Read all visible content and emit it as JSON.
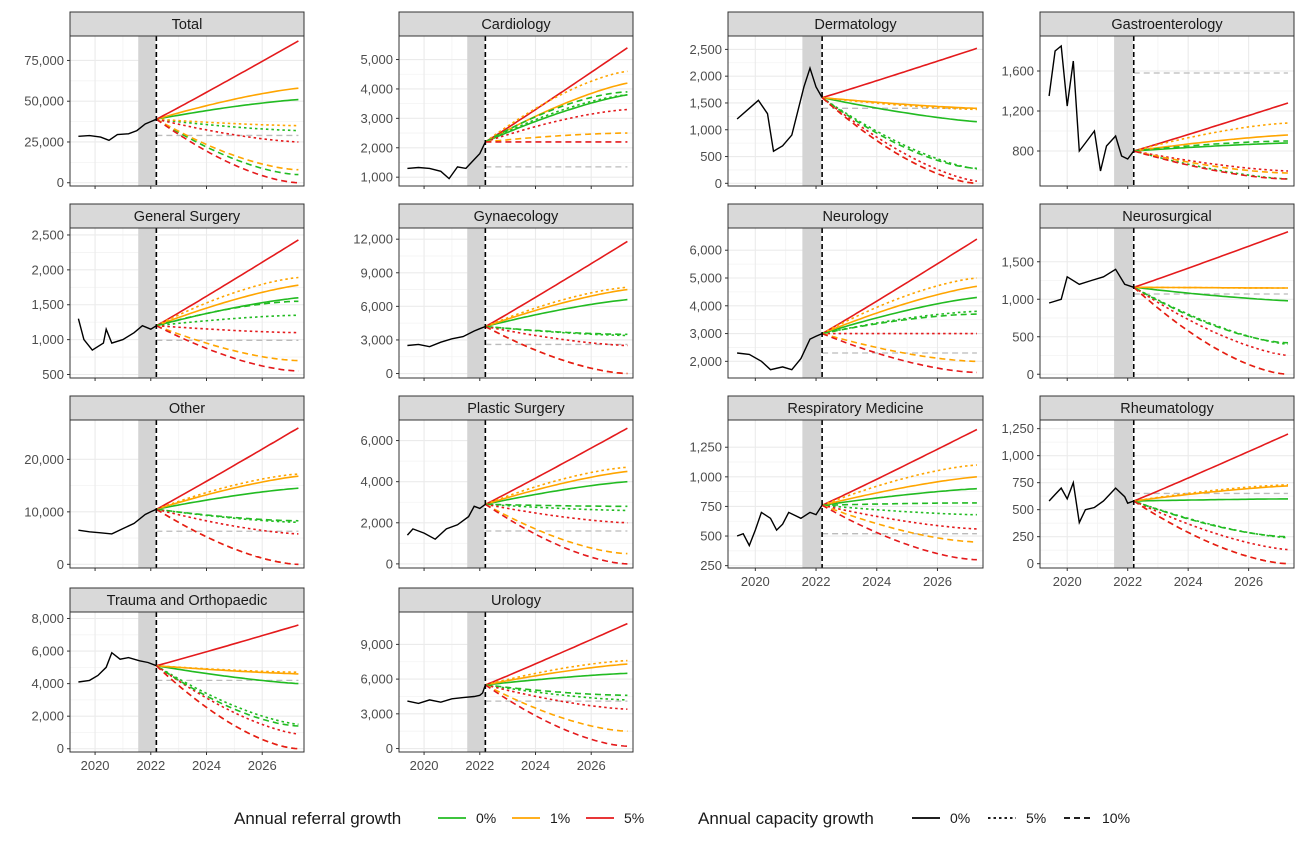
{
  "legend": {
    "referral": {
      "title": "Annual referral growth",
      "items": [
        {
          "label": "0%",
          "color": "#22bb22"
        },
        {
          "label": "1%",
          "color": "#ffa500"
        },
        {
          "label": "5%",
          "color": "#e41a1c"
        }
      ]
    },
    "capacity": {
      "title": "Annual capacity growth",
      "items": [
        {
          "label": "0%",
          "style": "solid"
        },
        {
          "label": "5%",
          "style": "dotted"
        },
        {
          "label": "10%",
          "style": "dashed"
        }
      ]
    }
  },
  "x_axis": {
    "ticks": [
      2020,
      2022,
      2024,
      2026
    ],
    "xlim": [
      2019.1,
      2027.5
    ]
  },
  "shaded_period": [
    2021.55,
    2022.17
  ],
  "forecast_start": 2022.2,
  "colors": {
    "observed": "#000000",
    "baseline": "#bbbbbb",
    "shade": "#d4d4d4",
    "strip": "#d9d9d9",
    "grid": "#ebebeb"
  },
  "chart_data": [
    {
      "type": "line",
      "title": "Total",
      "ylim": [
        -2000,
        90000
      ],
      "yticks": [
        0,
        25000,
        50000,
        75000
      ],
      "observed": [
        [
          2019.4,
          28500
        ],
        [
          2019.8,
          28900
        ],
        [
          2020.2,
          28000
        ],
        [
          2020.5,
          26000
        ],
        [
          2020.8,
          29500
        ],
        [
          2021.2,
          30000
        ],
        [
          2021.5,
          32000
        ],
        [
          2021.8,
          36000
        ],
        [
          2022.0,
          37500
        ],
        [
          2022.2,
          39000
        ]
      ],
      "baseline": 29000,
      "start": 39000,
      "end_2027": [
        51000,
        58000,
        87000,
        32000,
        35000,
        25000,
        5000,
        8000,
        0
      ]
    },
    {
      "type": "line",
      "title": "Cardiology",
      "ylim": [
        700,
        5800
      ],
      "yticks": [
        1000,
        2000,
        3000,
        4000,
        5000
      ],
      "observed": [
        [
          2019.4,
          1300
        ],
        [
          2019.8,
          1330
        ],
        [
          2020.2,
          1300
        ],
        [
          2020.6,
          1200
        ],
        [
          2020.9,
          950
        ],
        [
          2021.2,
          1350
        ],
        [
          2021.5,
          1300
        ],
        [
          2021.8,
          1600
        ],
        [
          2022.0,
          1800
        ],
        [
          2022.2,
          2200
        ]
      ],
      "baseline": 1350,
      "start": 2200,
      "end_2027": [
        3800,
        4200,
        5400,
        3800,
        4600,
        3300,
        3900,
        2500,
        2200
      ]
    },
    {
      "type": "line",
      "title": "Dermatology",
      "ylim": [
        -50,
        2750
      ],
      "yticks": [
        0,
        500,
        1000,
        1500,
        2000,
        2500
      ],
      "observed": [
        [
          2019.4,
          1200
        ],
        [
          2019.8,
          1400
        ],
        [
          2020.1,
          1550
        ],
        [
          2020.4,
          1300
        ],
        [
          2020.6,
          600
        ],
        [
          2020.9,
          700
        ],
        [
          2021.2,
          900
        ],
        [
          2021.6,
          1800
        ],
        [
          2021.8,
          2150
        ],
        [
          2022.0,
          1800
        ],
        [
          2022.2,
          1600
        ]
      ],
      "baseline": 1400,
      "start": 1600,
      "end_2027": [
        1150,
        1400,
        2520,
        270,
        1380,
        40,
        280,
        0,
        0
      ]
    },
    {
      "type": "line",
      "title": "Gastroenterology",
      "ylim": [
        450,
        1950
      ],
      "yticks": [
        800,
        1200,
        1600
      ],
      "observed": [
        [
          2019.4,
          1350
        ],
        [
          2019.6,
          1800
        ],
        [
          2019.8,
          1850
        ],
        [
          2020.0,
          1250
        ],
        [
          2020.2,
          1700
        ],
        [
          2020.4,
          800
        ],
        [
          2020.6,
          880
        ],
        [
          2020.9,
          1000
        ],
        [
          2021.1,
          600
        ],
        [
          2021.3,
          850
        ],
        [
          2021.6,
          950
        ],
        [
          2021.8,
          750
        ],
        [
          2022.0,
          720
        ],
        [
          2022.2,
          800
        ]
      ],
      "baseline": 1580,
      "start": 800,
      "end_2027": [
        880,
        960,
        1280,
        520,
        1080,
        600,
        900,
        580,
        520
      ]
    },
    {
      "type": "line",
      "title": "General Surgery",
      "ylim": [
        450,
        2600
      ],
      "yticks": [
        500,
        1000,
        1500,
        2000,
        2500
      ],
      "observed": [
        [
          2019.4,
          1300
        ],
        [
          2019.6,
          1000
        ],
        [
          2019.9,
          850
        ],
        [
          2020.3,
          950
        ],
        [
          2020.4,
          1150
        ],
        [
          2020.6,
          950
        ],
        [
          2021.0,
          1000
        ],
        [
          2021.4,
          1100
        ],
        [
          2021.7,
          1200
        ],
        [
          2022.0,
          1150
        ],
        [
          2022.2,
          1200
        ]
      ],
      "baseline": 990,
      "start": 1200,
      "end_2027": [
        1600,
        1780,
        2430,
        1350,
        1890,
        1100,
        1550,
        700,
        550
      ]
    },
    {
      "type": "line",
      "title": "Gynaecology",
      "ylim": [
        -400,
        13000
      ],
      "yticks": [
        0,
        3000,
        6000,
        9000,
        12000
      ],
      "observed": [
        [
          2019.4,
          2500
        ],
        [
          2019.8,
          2600
        ],
        [
          2020.2,
          2400
        ],
        [
          2020.6,
          2800
        ],
        [
          2021.0,
          3100
        ],
        [
          2021.4,
          3300
        ],
        [
          2021.8,
          3800
        ],
        [
          2022.0,
          4000
        ],
        [
          2022.2,
          4200
        ]
      ],
      "baseline": 2600,
      "start": 4200,
      "end_2027": [
        6600,
        7500,
        11800,
        3400,
        7700,
        2500,
        3500,
        0,
        0
      ]
    },
    {
      "type": "line",
      "title": "Neurology",
      "ylim": [
        1400,
        6800
      ],
      "yticks": [
        2000,
        3000,
        4000,
        5000,
        6000
      ],
      "observed": [
        [
          2019.4,
          2300
        ],
        [
          2019.8,
          2250
        ],
        [
          2020.2,
          2000
        ],
        [
          2020.5,
          1700
        ],
        [
          2020.9,
          1800
        ],
        [
          2021.2,
          1700
        ],
        [
          2021.5,
          2100
        ],
        [
          2021.8,
          2800
        ],
        [
          2022.0,
          2900
        ],
        [
          2022.2,
          3000
        ]
      ],
      "baseline": 2300,
      "start": 3000,
      "end_2027": [
        4300,
        4700,
        6400,
        3800,
        5000,
        3000,
        3700,
        2000,
        1600
      ]
    },
    {
      "type": "line",
      "title": "Neurosurgical",
      "ylim": [
        -50,
        1950
      ],
      "yticks": [
        0,
        500,
        1000,
        1500
      ],
      "observed": [
        [
          2019.4,
          950
        ],
        [
          2019.8,
          1000
        ],
        [
          2020.0,
          1300
        ],
        [
          2020.4,
          1200
        ],
        [
          2020.8,
          1250
        ],
        [
          2021.2,
          1300
        ],
        [
          2021.6,
          1400
        ],
        [
          2021.9,
          1200
        ],
        [
          2022.2,
          1160
        ]
      ],
      "baseline": 1070,
      "start": 1160,
      "end_2027": [
        980,
        1150,
        1900,
        400,
        1150,
        250,
        420,
        0,
        0
      ]
    },
    {
      "type": "line",
      "title": "Other",
      "ylim": [
        -700,
        27500
      ],
      "yticks": [
        0,
        10000,
        20000
      ],
      "observed": [
        [
          2019.4,
          6500
        ],
        [
          2019.8,
          6200
        ],
        [
          2020.2,
          6000
        ],
        [
          2020.6,
          5800
        ],
        [
          2021.0,
          6800
        ],
        [
          2021.4,
          7800
        ],
        [
          2021.8,
          9500
        ],
        [
          2022.0,
          10000
        ],
        [
          2022.2,
          10500
        ]
      ],
      "baseline": 6300,
      "start": 10500,
      "end_2027": [
        14500,
        16800,
        26000,
        8000,
        17200,
        5800,
        8300,
        0,
        0
      ]
    },
    {
      "type": "line",
      "title": "Plastic Surgery",
      "ylim": [
        -200,
        7000
      ],
      "yticks": [
        0,
        2000,
        4000,
        6000
      ],
      "observed": [
        [
          2019.4,
          1400
        ],
        [
          2019.6,
          1700
        ],
        [
          2020.0,
          1500
        ],
        [
          2020.4,
          1200
        ],
        [
          2020.8,
          1700
        ],
        [
          2021.2,
          1900
        ],
        [
          2021.6,
          2300
        ],
        [
          2021.8,
          2800
        ],
        [
          2022.0,
          2700
        ],
        [
          2022.2,
          2900
        ]
      ],
      "baseline": 1600,
      "start": 2900,
      "end_2027": [
        4000,
        4500,
        6600,
        2600,
        4700,
        2000,
        2800,
        500,
        0
      ]
    },
    {
      "type": "line",
      "title": "Respiratory Medicine",
      "ylim": [
        230,
        1480
      ],
      "yticks": [
        250,
        500,
        750,
        1000,
        1250
      ],
      "observed": [
        [
          2019.4,
          500
        ],
        [
          2019.6,
          520
        ],
        [
          2019.8,
          420
        ],
        [
          2020.0,
          550
        ],
        [
          2020.2,
          700
        ],
        [
          2020.5,
          650
        ],
        [
          2020.7,
          550
        ],
        [
          2020.9,
          600
        ],
        [
          2021.1,
          700
        ],
        [
          2021.5,
          650
        ],
        [
          2021.8,
          700
        ],
        [
          2022.0,
          680
        ],
        [
          2022.2,
          760
        ]
      ],
      "baseline": 520,
      "start": 760,
      "end_2027": [
        900,
        1000,
        1400,
        680,
        1100,
        560,
        780,
        450,
        300
      ]
    },
    {
      "type": "line",
      "title": "Rheumatology",
      "ylim": [
        -40,
        1330
      ],
      "yticks": [
        0,
        250,
        500,
        750,
        1000,
        1250
      ],
      "observed": [
        [
          2019.4,
          580
        ],
        [
          2019.6,
          640
        ],
        [
          2019.8,
          700
        ],
        [
          2020.0,
          600
        ],
        [
          2020.2,
          750
        ],
        [
          2020.4,
          380
        ],
        [
          2020.6,
          500
        ],
        [
          2020.9,
          520
        ],
        [
          2021.2,
          580
        ],
        [
          2021.6,
          700
        ],
        [
          2021.9,
          620
        ],
        [
          2022.0,
          560
        ],
        [
          2022.2,
          580
        ]
      ],
      "baseline": 650,
      "start": 580,
      "end_2027": [
        600,
        720,
        1200,
        240,
        730,
        130,
        250,
        0,
        0
      ]
    },
    {
      "type": "line",
      "title": "Trauma and Orthopaedic",
      "ylim": [
        -200,
        8400
      ],
      "yticks": [
        0,
        2000,
        4000,
        6000,
        8000
      ],
      "observed": [
        [
          2019.4,
          4100
        ],
        [
          2019.8,
          4200
        ],
        [
          2020.1,
          4500
        ],
        [
          2020.4,
          5000
        ],
        [
          2020.6,
          5900
        ],
        [
          2020.9,
          5500
        ],
        [
          2021.2,
          5600
        ],
        [
          2021.6,
          5400
        ],
        [
          2021.9,
          5300
        ],
        [
          2022.2,
          5100
        ]
      ],
      "baseline": 4200,
      "start": 5100,
      "end_2027": [
        4000,
        4600,
        7600,
        1500,
        4700,
        900,
        1400,
        0,
        0
      ]
    },
    {
      "type": "line",
      "title": "Urology",
      "ylim": [
        -300,
        11800
      ],
      "yticks": [
        0,
        3000,
        6000,
        9000
      ],
      "observed": [
        [
          2019.4,
          4100
        ],
        [
          2019.8,
          3900
        ],
        [
          2020.2,
          4200
        ],
        [
          2020.6,
          4000
        ],
        [
          2021.0,
          4300
        ],
        [
          2021.4,
          4400
        ],
        [
          2021.8,
          4500
        ],
        [
          2022.0,
          4600
        ],
        [
          2022.1,
          4800
        ],
        [
          2022.2,
          5500
        ]
      ],
      "baseline": 4100,
      "start": 5500,
      "end_2027": [
        6500,
        7300,
        10800,
        4200,
        7600,
        3400,
        4600,
        1500,
        200
      ]
    }
  ]
}
